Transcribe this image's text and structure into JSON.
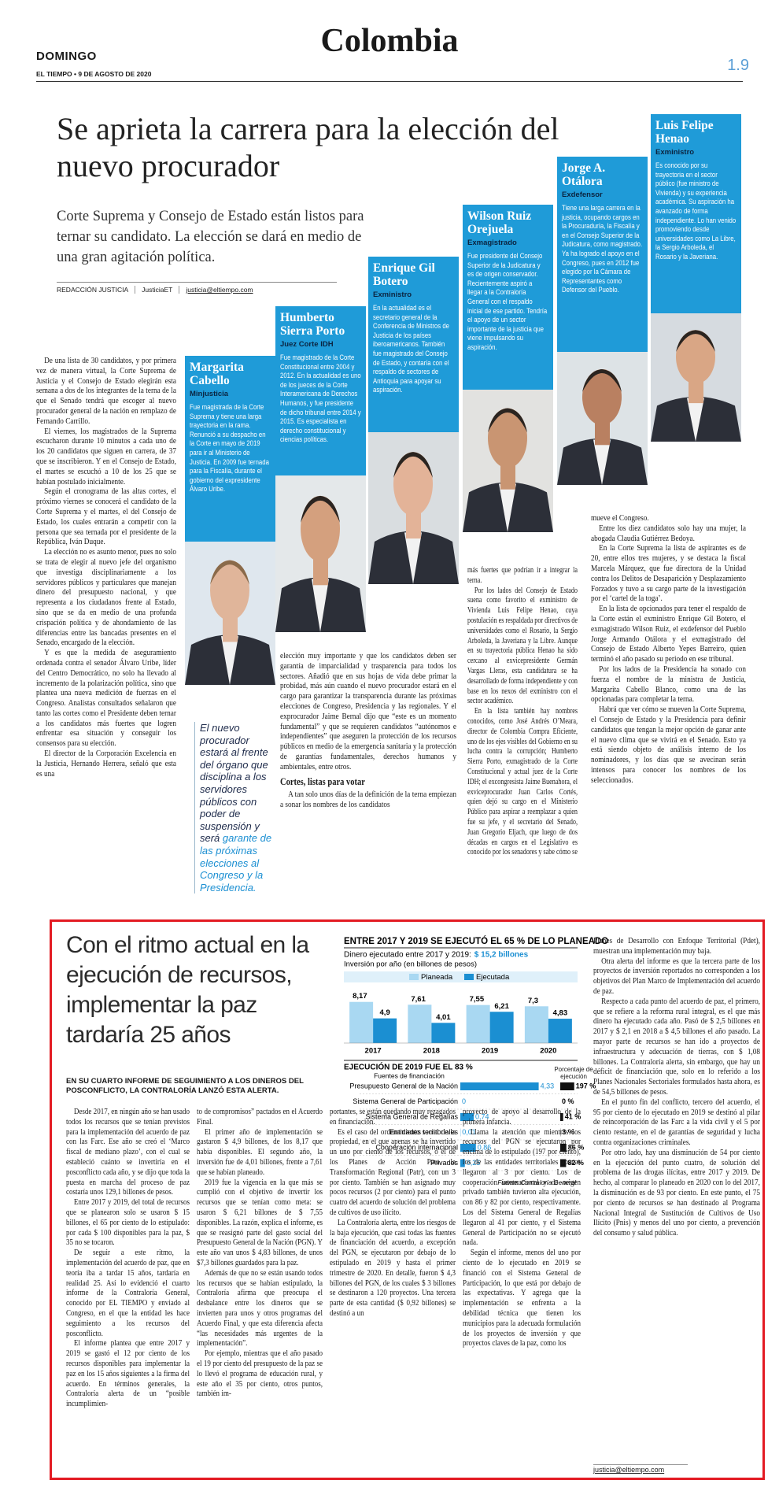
{
  "header": {
    "day": "DOMINGO",
    "section": "Colombia",
    "edition": "EL TIEMPO • 9 DE AGOSTO DE 2020",
    "page": "1.9"
  },
  "article": {
    "title": "Se aprieta la carrera para la elección del nuevo procurador",
    "deck": "Corte Suprema y Consejo de Estado están listos para ternar su candidato. La elección se dará en medio de una gran agitación política.",
    "byline": {
      "author": "REDACCIÓN JUSTICIA",
      "twitter": "JusticiaET",
      "email": "justicia@eltiempo.com"
    },
    "columns": [
      [
        "De una lista de 30 candidatos, y por primera vez de manera virtual, la Corte Suprema de Justicia y el Consejo de Estado elegirán esta semana a dos de los integrantes de la terna de la que el Senado tendrá que escoger al nuevo procurador general de la nación en remplazo de Fernando Carrillo.",
        "El viernes, los magistrados de la Suprema escucharon durante 10 minutos a cada uno de los 20 candidatos que siguen en carrera, de 37 que se inscribieron. Y en el Consejo de Estado, el martes se escuchó a 10 de los 25 que se habían postulado inicialmente.",
        "Según el cronograma de las altas cortes, el próximo viernes se conocerá el candidato de la Corte Suprema y el martes, el del Consejo de Estado, los cuales entrarán a competir con la persona que sea ternada por el presidente de la República, Iván Duque.",
        "La elección no es asunto menor, pues no solo se trata de elegir al nuevo jefe del organismo que investiga disciplinariamente a los servidores públicos y particulares que manejan dinero del presupuesto nacional, y que representa a los ciudadanos frente al Estado, sino que se da en medio de una profunda crispación política y de ahondamiento de las diferencias entre las bancadas presentes en el Senado, encargado de la elección.",
        "Y es que la medida de aseguramiento ordenada contra el senador Álvaro Uribe, líder del Centro Democrático, no solo ha llevado al incremento de la polarización política, sino que plantea una nueva medición de fuerzas en el Congreso. Analistas consultados señalaron que tanto las cortes como el Presidente deben ternar a los candidatos más fuertes que logren enfrentar esa situación y conseguir los consensos para su elección.",
        "El director de la Corporación Excelencia en la Justicia, Hernando Herrera, señaló que esta es una"
      ],
      [
        "elección muy importante y que los candidatos deben ser garantía de imparcialidad y trasparencia para todos los sectores. Añadió que en sus hojas de vida debe primar la probidad, más aún cuando el nuevo procurador estará en el cargo para garantizar la transparencia durante las próximas elecciones de Congreso, Presidencia y las regionales. Y el exprocurador Jaime Bernal dijo que “este es un momento fundamental” y que se requieren candidatos “autónomos e independientes” que aseguren la protección de los recursos públicos en medio de la emergencia sanitaria y la protección de garantías fundamentales, derechos humanos y ambientales, entre otros.",
        "A tan solo unos días de la definición de la terna empiezan a sonar los nombres de los candidatos"
      ],
      [
        "más fuertes que podrían ir a integrar la terna.",
        "Por los lados del Consejo de Estado suena como favorito el exministro de Vivienda Luis Felipe Henao, cuya postulación es respaldada por directivos de universidades como el Rosario, la Sergio Arboleda, la Javeriana y la Libre. Aunque en su trayectoria pública Henao ha sido cercano al exvicepresidente Germán Vargas Lleras, esta candidatura se ha desarrollado de forma independiente y con base en los nexos del exministro con el sector académico.",
        "En la lista también hay nombres conocidos, como José Andrés O’Meara, director de Colombia Compra Eficiente, uno de los ejes visibles del Gobierno en su lucha contra la corrupción; Humberto Sierra Porto, exmagistrado de la Corte Constitucional y actual juez de la Corte IDH; el excongresista Jaime Buenahora, el exviceprocurador Juan Carlos Cortés, quien dejó su cargo en el Ministerio Público para aspirar a reemplazar a quien fue su jefe, y el secretario del Senado, Juan Gregorio Eljach, que luego de dos décadas en cargos en el Legislativo es conocido por los senadores y sabe cómo se"
      ],
      [
        "mueve el Congreso.",
        "Entre los diez candidatos solo hay una mujer, la abogada Claudia Gutiérrez Bedoya.",
        "En la Corte Suprema la lista de aspirantes es de 20, entre ellos tres mujeres, y se destaca la fiscal Marcela Márquez, que fue directora de la Unidad contra los Delitos de Desaparición y Desplazamiento Forzados y tuvo a su cargo parte de la investigación por el ‘cartel de la toga’.",
        "En la lista de opcionados para tener el respaldo de la Corte están el exministro Enrique Gil Botero, el exmagistrado Wilson Ruiz, el exdefensor del Pueblo Jorge Armando Otálora y el exmagistrado del Consejo de Estado Alberto Yepes Barreiro, quien terminó el año pasado su periodo en ese tribunal.",
        "Por los lados de la Presidencia ha sonado con fuerza el nombre de la ministra de Justicia, Margarita Cabello Blanco, como una de las opcionadas para completar la terna.",
        "Habrá que ver cómo se mueven la Corte Suprema, el Consejo de Estado y la Presidencia para definir candidatos que tengan la mejor opción de ganar ante el nuevo clima que se vivirá en el Senado. Esto ya está siendo objeto de análisis interno de los nominadores, y los días que se avecinan serán intensos para conocer los nombres de los seleccionados."
      ]
    ],
    "subhead": "Cortes, listas para votar",
    "quote": "El nuevo procurador estará al frente del órgano que disciplina a los servidores públicos con poder de suspensión y será",
    "quote_highlight": "garante de las próximas elecciones al Congreso y la Presidencia."
  },
  "candidates": [
    {
      "name": "Margarita Cabello",
      "role": "Minjusticia",
      "bio": "Fue magistrada de la Corte Suprema y tiene una larga trayectoria en la rama. Renunció a su despacho en la Corte en mayo de 2019 para ir al Ministerio de Justicia. En 2009 fue ternada para la Fiscalía, durante el gobierno del expresidente Álvaro Uribe."
    },
    {
      "name": "Humberto Sierra Porto",
      "role": "Juez Corte IDH",
      "bio": "Fue magistrado de la Corte Constitucional entre 2004 y 2012. En la actualidad es uno de los jueces de la Corte Interamericana de Derechos Humanos, y fue presidente de dicho tribunal entre 2014 y 2015. Es especialista en derecho constitucional y ciencias políticas."
    },
    {
      "name": "Enrique Gil Botero",
      "role": "Exministro",
      "bio": "En la actualidad es el secretario general de la Conferencia de Ministros de Justicia de los países iberoamericanos. También fue magistrado del Consejo de Estado, y contaría con el respaldo de sectores de Antioquia para apoyar su aspiración."
    },
    {
      "name": "Wilson Ruiz Orejuela",
      "role": "Exmagistrado",
      "bio": "Fue presidente del Consejo Superior de la Judicatura y es de origen conservador. Recientemente aspiró a llegar a la Contraloría General con el respaldo inicial de ese partido. Tendría el apoyo de un sector importante de la justicia que viene impulsando su aspiración."
    },
    {
      "name": "Jorge A. Otálora",
      "role": "Exdefensor",
      "bio": "Tiene una larga carrera en la justicia, ocupando cargos en la Procuraduría, la Fiscalía y en el Consejo Superior de la Judicatura, como magistrado. Ya ha logrado el apoyo en el Congreso, pues en 2012 fue elegido por la Cámara de Representantes como Defensor del Pueblo."
    },
    {
      "name": "Luis Felipe Henao",
      "role": "Exministro",
      "bio": "Es conocido por su trayectoria en el sector público (fue ministro de Vivienda) y su experiencia académica. Su aspiración ha avanzado de forma independiente. Lo han venido promoviendo desde universidades como La Libre, la Sergio Arboleda, el Rosario y la Javeriana."
    }
  ],
  "sidebar": {
    "title": "Con el ritmo actual en la ejecución de recursos, implementar la paz tardaría 25 años",
    "subtitle": "EN SU CUARTO INFORME DE SEGUIMIENTO A LOS DINEROS DEL POSCONFLICTO, LA CONTRALORÍA LANZÓ ESTA ALERTA.",
    "columns": [
      [
        "Desde 2017, en ningún año se han usado todos los recursos que se tenían previstos para la implementación del acuerdo de paz con las Farc. Ese año se creó el ‘Marco fiscal de mediano plazo’, con el cual se estableció cuánto se invertiría en el posconflicto cada año, y se dijo que toda la puesta en marcha del proceso de paz costaría unos 129,1 billones de pesos.",
        "Entre 2017 y 2019, del total de recursos que se planearon solo se usaron $ 15 billones, el 65 por ciento de lo estipulado: por cada $ 100 disponibles para la paz, $ 35 no se tocaron.",
        "De seguir a este ritmo, la implementación del acuerdo de paz, que en teoría iba a tardar 15 años, tardaría en realidad 25. Así lo evidenció el cuarto informe de la Contraloría General, conocido por EL TIEMPO y enviado al Congreso, en el que la entidad les hace seguimiento a los recursos del posconflicto.",
        "El informe plantea que entre 2017 y 2019 se gastó el 12 por ciento de los recursos disponibles para implementar la paz en los 15 años siguientes a la firma del acuerdo. En términos generales, la Contraloría alerta de un “posible incumplimien-"
      ],
      [
        "to de compromisos” pactados en el Acuerdo Final.",
        "El primer año de implementación se gastaron $ 4,9 billones, de los 8,17 que había disponibles. El segundo año, la inversión fue de 4,01 billones, frente a 7,61 que se habían planeado.",
        "2019 fue la vigencia en la que más se cumplió con el objetivo de invertir los recursos que se tenían como meta: se usaron $ 6,21 billones de $ 7,55 disponibles. La razón, explica el informe, es que se reasignó parte del gasto social del Presupuesto General de la Nación (PGN). Y este año van unos $ 4,83 billones, de unos $7,3 billones guardados para la paz.",
        "Además de que no se están usando todos los recursos que se habían estipulado, la Contraloría afirma que preocupa el desbalance entre los dineros que se invierten para unos y otros programas del Acuerdo Final, y que esta diferencia afecta “las necesidades más urgentes de la implementación”.",
        "Por ejemplo, mientras que el año pasado el 19 por ciento del presupuesto de la paz se lo llevó el programa de educación rural, y este año el 35 por ciento, otros puntos, también im-"
      ],
      [
        "portantes, se están quedando muy rezagados en financiación.",
        "Es el caso del ordenamiento social de la propiedad, en el que apenas se ha invertido un uno por ciento de los recursos, o el de los Planes de Acción Para la Transformación Regional (Patr), con un 3 por ciento. También se han asignado muy pocos recursos (2 por ciento) para el punto cuatro del acuerdo de solución del problema de cultivos de uso ilícito.",
        "La Contraloría alerta, entre los riesgos de la baja ejecución, que casi todas las fuentes de financiación del acuerdo, a excepción del PGN, se ejecutaron por debajo de lo estipulado en 2019 y hasta el primer trimestre de 2020. En detalle, fueron $ 4,3 billones del PGN, de los cuales $ 3 billones se destinaron a 120 proyectos. Una tercera parte de esta cantidad ($ 0,92 billones) se destinó a un"
      ],
      [
        "proyecto de apoyo al desarrollo de la primera infancia.",
        "Llama la atención que mientras los recursos del PGN se ejecutaron por encima de lo estipulado (197 por ciento), los de las entidades territoriales apenas llegaron al 3 por ciento. Los de cooperación internacional y de origen privado también tuvieron alta ejecución, con 86 y 82 por ciento, respectivamente. Los del Sistema General de Regalías llegaron al 41 por ciento, y el Sistema General de Participación no se ejecutó nada.",
        "Según el informe, menos del uno por ciento de lo ejecutado en 2019 se financió con el Sistema General de Participación, lo que está por debajo de las expectativas. Y agrega que la implementación se enfrenta a la debilidad técnica que tienen los municipios para la adecuada formulación de los proyectos de inversión y que proyectos claves de la paz, como los"
      ],
      [
        "Planes de Desarrollo con Enfoque Territorial (Pdet), muestran una implementación muy baja.",
        "Otra alerta del informe es que la tercera parte de los proyectos de inversión reportados no corresponden a los objetivos del Plan Marco de Implementación del acuerdo de paz.",
        "Respecto a cada punto del acuerdo de paz, el primero, que se refiere a la reforma rural integral, es el que más dinero ha ejecutado cada año. Pasó de $ 2,5 billones en 2017 y $ 2,1 en 2018 a $ 4,5 billones el año pasado. La mayor parte de recursos se han ido a proyectos de infraestructura y adecuación de tierras, con $ 1,08 billones. La Contraloría alerta, sin embargo, que hay un déficit de financiación que, solo en lo referido a los Planes Nacionales Sectoriales formulados hasta ahora, es de 54,5 billones de pesos.",
        "En el punto fin del conflicto, tercero del acuerdo, el 95 por ciento de lo ejecutado en 2019 se destinó al pilar de reincorporación de las Farc a la vida civil y el 5 por ciento restante, en el de garantías de seguridad y lucha contra organizaciones criminales.",
        "Por otro lado, hay una disminución de 54 por ciento en la ejecución del punto cuatro, de solución del problema de las drogas ilícitas, entre 2017 y 2019. De hecho, al comparar lo planeado en 2020 con lo del 2017, la disminución es de 93 por ciento. En este punto, el 75 por ciento de recursos se han destinado al Programa Nacional Integral de Sustitución de Cultivos de Uso Ilícito (Pnis) y menos del uno por ciento, a prevención del consumo y salud pública."
      ]
    ],
    "email": "justicia@eltiempo.com"
  },
  "infographic": {
    "title": "ENTRE 2017 Y 2019 SE EJECUTÓ EL 65 % DE LO PLANEADO",
    "total_label": "Dinero ejecutado entre 2017 y 2019:",
    "total": "$ 15,2 billones",
    "subtitle": "Inversión por año (en billones de pesos)",
    "chart": {
      "type": "bar",
      "categories": [
        "2017",
        "2018",
        "2019",
        "2020"
      ],
      "series": [
        {
          "name": "Planeada",
          "color": "#a9d8f2",
          "values": [
            8.17,
            7.61,
            7.55,
            7.3
          ],
          "value_labels": [
            "8,17",
            "7,61",
            "7,55",
            "7,3"
          ]
        },
        {
          "name": "Ejecutada",
          "color": "#1b8fd2",
          "values": [
            4.9,
            4.01,
            6.21,
            4.83
          ],
          "value_labels": [
            "4,9",
            "4,01",
            "6,21",
            "4,83"
          ]
        }
      ]
    },
    "table": {
      "title": "EJECUCIÓN DE 2019 FUE EL 83 %",
      "col_sources": "Fuentes de financiación",
      "col_pct": "Porcentaje de ejecución",
      "amount_color": "#1b8fd2",
      "pct_color": "#111111",
      "rows": [
        {
          "name": "Presupuesto General de la Nación",
          "amount": 4.33,
          "amount_label": "4,33",
          "pct": 197,
          "pct_label": "197 %"
        },
        {
          "name": "Sistema General de Participación",
          "amount": 0,
          "amount_label": "0",
          "pct": 0,
          "pct_label": "0 %"
        },
        {
          "name": "Sistema General de Regalías",
          "amount": 0.74,
          "amount_label": "0,74",
          "pct": 41,
          "pct_label": "41 %"
        },
        {
          "name": "Entidades territoriales",
          "amount": 0.01,
          "amount_label": "0,01",
          "pct": 3,
          "pct_label": "3 %"
        },
        {
          "name": "Cooperación internacional",
          "amount": 0.86,
          "amount_label": "0,86",
          "pct": 86,
          "pct_label": "86 %"
        },
        {
          "name": "Privados",
          "amount": 0.25,
          "amount_label": "0,25",
          "pct": 82,
          "pct_label": "82 %"
        }
      ],
      "source": "Fuente: Contraloría General"
    }
  }
}
